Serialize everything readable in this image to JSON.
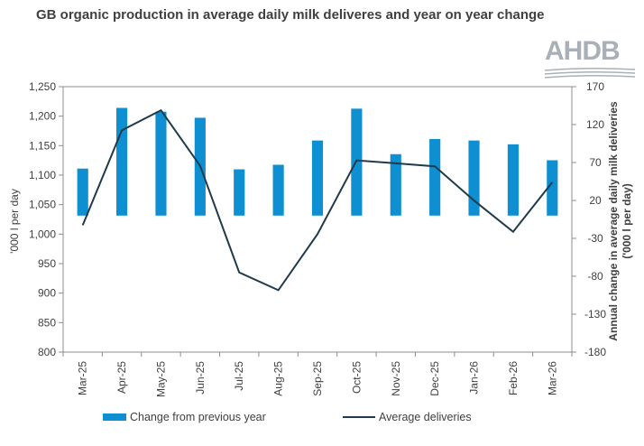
{
  "chart_data": {
    "type": "bar+line",
    "title": "GB organic production in average daily milk deliveres and year on year change",
    "categories": [
      "Mar-25",
      "Apr-25",
      "May-25",
      "Jun-25",
      "Jul-25",
      "Aug-25",
      "Sep-25",
      "Oct-25",
      "Nov-25",
      "Dec-25",
      "Jan-26",
      "Feb-26",
      "Mar-26"
    ],
    "series": [
      {
        "name": "Change from previous year",
        "type": "bar",
        "axis": "y2",
        "color": "#0e8fd1",
        "values": [
          62,
          142,
          137,
          129,
          61,
          67,
          99,
          141,
          81,
          101,
          99,
          94,
          73
        ]
      },
      {
        "name": "Average deliveries",
        "type": "line",
        "axis": "y1",
        "color": "#1f3a4a",
        "values": [
          1015,
          1176,
          1210,
          1116,
          935,
          905,
          1000,
          1125,
          1120,
          1115,
          1057,
          1004,
          1088
        ]
      }
    ],
    "ylabel": "'000 l per day",
    "y2label": "Annual change in average daily milk deliveries\n('000 l per day)",
    "ylim": [
      800,
      1250
    ],
    "y1_ticks": [
      "1,250",
      "1,200",
      "1,150",
      "1,100",
      "1,050",
      "1,000",
      "950",
      "900",
      "850",
      "800"
    ],
    "y2lim": [
      -180,
      170
    ],
    "y2_ticks": [
      "170",
      "120",
      "70",
      "20",
      "-30",
      "-80",
      "-130",
      "-180"
    ],
    "grid": false,
    "legend_position": "bottom"
  },
  "logo_text": "AHDB"
}
